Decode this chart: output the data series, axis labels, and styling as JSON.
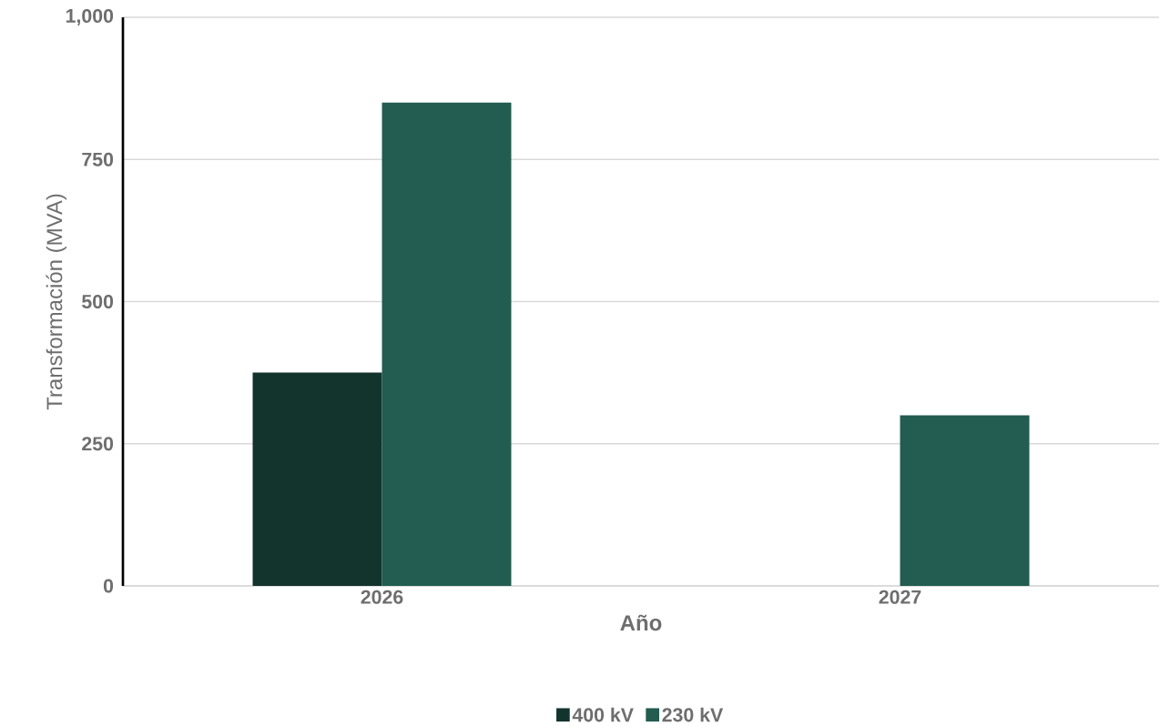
{
  "chart_data": {
    "type": "bar",
    "xlabel": "Año",
    "ylabel": "Transformación (MVA)",
    "categories": [
      "2026",
      "2027"
    ],
    "series": [
      {
        "name": "400 kV",
        "color": "#13332d",
        "values": [
          375,
          null
        ]
      },
      {
        "name": "230 kV",
        "color": "#235c50",
        "values": [
          850,
          300
        ]
      }
    ],
    "ylim": [
      0,
      1000
    ],
    "yticks": [
      0,
      250,
      500,
      750,
      {
        "value": 1000,
        "label": "1,000"
      }
    ],
    "grid": "y",
    "legend": "bottom"
  }
}
